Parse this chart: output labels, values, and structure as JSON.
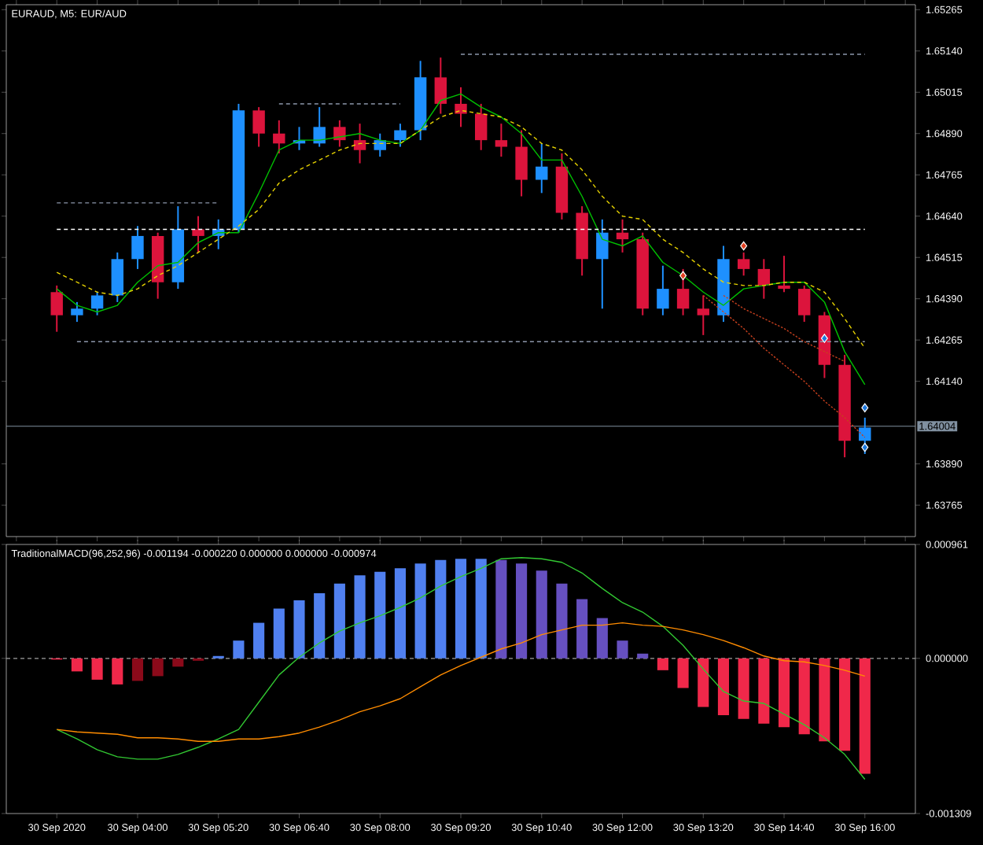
{
  "chart_data": [
    {
      "type": "candlestick",
      "title": "EURAUD, M5: EUR/AUD",
      "tick_labels": "y",
      "categories": [
        null,
        null,
        null,
        null,
        null,
        null,
        null,
        null,
        null,
        null,
        null,
        null,
        null,
        null,
        null,
        null,
        null,
        null,
        null,
        null,
        null,
        null,
        null,
        null,
        null,
        null,
        null,
        null,
        null,
        null,
        null,
        null,
        null,
        null,
        null,
        null,
        null,
        null,
        null,
        null,
        null,
        null,
        null,
        null,
        null
      ],
      "ylim": [
        1.6367,
        1.6528
      ],
      "yticks": [
        {
          "value": 1.65265,
          "label": "1.65265"
        },
        {
          "value": 1.6514,
          "label": "1.65140"
        },
        {
          "value": 1.65015,
          "label": "1.65015"
        },
        {
          "value": 1.6489,
          "label": "1.64890"
        },
        {
          "value": 1.64765,
          "label": "1.64765"
        },
        {
          "value": 1.6464,
          "label": "1.64640"
        },
        {
          "value": 1.64515,
          "label": "1.64515"
        },
        {
          "value": 1.6439,
          "label": "1.64390"
        },
        {
          "value": 1.64265,
          "label": "1.64265"
        },
        {
          "value": 1.6414,
          "label": "1.64140"
        },
        {
          "value": 1.6389,
          "label": "1.63890"
        },
        {
          "value": 1.63765,
          "label": "1.63765"
        }
      ],
      "ohlc": [
        null,
        null,
        [
          1.6441,
          1.6443,
          1.6429,
          1.6434
        ],
        [
          1.6434,
          1.6438,
          1.6432,
          1.6436
        ],
        [
          1.6436,
          1.6441,
          1.6434,
          1.644
        ],
        [
          1.644,
          1.6453,
          1.6438,
          1.6451
        ],
        [
          1.6451,
          1.6461,
          1.6448,
          1.6458
        ],
        [
          1.6458,
          1.6459,
          1.6439,
          1.6444
        ],
        [
          1.6444,
          1.6467,
          1.6442,
          1.646
        ],
        [
          1.646,
          1.6464,
          1.6453,
          1.6458
        ],
        [
          1.6458,
          1.6463,
          1.6454,
          1.646
        ],
        [
          1.646,
          1.6498,
          1.6459,
          1.6496
        ],
        [
          1.6496,
          1.6497,
          1.6485,
          1.6489
        ],
        [
          1.6489,
          1.6493,
          1.6483,
          1.6486
        ],
        [
          1.6486,
          1.6491,
          1.6484,
          1.6487
        ],
        [
          1.6486,
          1.6497,
          1.6485,
          1.6491
        ],
        [
          1.6491,
          1.6493,
          1.6485,
          1.6487
        ],
        [
          1.6487,
          1.6492,
          1.648,
          1.6484
        ],
        [
          1.6484,
          1.6489,
          1.6482,
          1.6487
        ],
        [
          1.6487,
          1.6492,
          1.6485,
          1.649
        ],
        [
          1.649,
          1.6511,
          1.6487,
          1.6506
        ],
        [
          1.6506,
          1.6512,
          1.6495,
          1.6498
        ],
        [
          1.6498,
          1.6503,
          1.6491,
          1.6495
        ],
        [
          1.6495,
          1.6498,
          1.6484,
          1.6487
        ],
        [
          1.6487,
          1.6492,
          1.6482,
          1.6485
        ],
        [
          1.6485,
          1.649,
          1.647,
          1.6475
        ],
        [
          1.6475,
          1.6486,
          1.6471,
          1.6479
        ],
        [
          1.6479,
          1.6483,
          1.6463,
          1.6465
        ],
        [
          1.6465,
          1.6467,
          1.6446,
          1.6451
        ],
        [
          1.6451,
          1.6463,
          1.6436,
          1.6459
        ],
        [
          1.6459,
          1.6463,
          1.6453,
          1.6457
        ],
        [
          1.6457,
          1.6459,
          1.6434,
          1.6436
        ],
        [
          1.6436,
          1.6449,
          1.6434,
          1.6442
        ],
        [
          1.6442,
          1.6448,
          1.6434,
          1.6436
        ],
        [
          1.6436,
          1.644,
          1.6428,
          1.6434
        ],
        [
          1.6434,
          1.6455,
          1.6432,
          1.6451
        ],
        [
          1.6451,
          1.6453,
          1.6446,
          1.6448
        ],
        [
          1.6448,
          1.6451,
          1.6439,
          1.6443
        ],
        [
          1.6443,
          1.6452,
          1.6441,
          1.6442
        ],
        [
          1.6442,
          1.6443,
          1.6432,
          1.6434
        ],
        [
          1.6434,
          1.6435,
          1.6415,
          1.6419
        ],
        [
          1.6419,
          1.6422,
          1.6391,
          1.6396
        ],
        [
          1.6396,
          1.6403,
          1.6392,
          1.64
        ],
        null,
        null
      ],
      "colors": [
        null,
        null,
        "#dc143c",
        "#1e90ff",
        "#1e90ff",
        "#1e90ff",
        "#1e90ff",
        "#dc143c",
        "#1e90ff",
        "#dc143c",
        "#1e90ff",
        "#1e90ff",
        "#dc143c",
        "#dc143c",
        "#1e90ff",
        "#1e90ff",
        "#dc143c",
        "#dc143c",
        "#1e90ff",
        "#1e90ff",
        "#1e90ff",
        "#dc143c",
        "#dc143c",
        "#dc143c",
        "#dc143c",
        "#dc143c",
        "#1e90ff",
        "#dc143c",
        "#dc143c",
        "#1e90ff",
        "#dc143c",
        "#dc143c",
        "#1e90ff",
        "#dc143c",
        "#dc143c",
        "#1e90ff",
        "#dc143c",
        "#dc143c",
        "#dc143c",
        "#dc143c",
        "#dc143c",
        "#dc143c",
        "#1e90ff",
        null,
        null
      ],
      "series": [
        {
          "type": "line",
          "color": "#00c000",
          "values": [
            null,
            null,
            1.6442,
            1.6437,
            1.6435,
            1.6437,
            1.6444,
            1.6449,
            1.645,
            1.6456,
            1.6459,
            1.6459,
            1.6471,
            1.6484,
            1.6487,
            1.6487,
            1.6488,
            1.6489,
            1.6487,
            1.6486,
            1.649,
            1.6499,
            1.6501,
            1.6497,
            1.6494,
            1.6489,
            1.6481,
            1.6481,
            1.647,
            1.6457,
            1.6455,
            1.6458,
            1.645,
            1.6446,
            1.6441,
            1.6437,
            1.6442,
            1.6443,
            1.6444,
            1.6444,
            1.6438,
            1.6423,
            1.6413,
            null,
            null
          ]
        },
        {
          "type": "line",
          "color": "#e6d200",
          "line_style": "dashed",
          "values": [
            null,
            null,
            1.6447,
            1.6444,
            1.6441,
            1.644,
            1.6442,
            1.6446,
            1.6449,
            1.6453,
            1.6457,
            1.6461,
            1.6466,
            1.6474,
            1.6478,
            1.6481,
            1.6484,
            1.6486,
            1.6486,
            1.6486,
            1.649,
            1.6494,
            1.6496,
            1.6495,
            1.6494,
            1.6491,
            1.6486,
            1.6484,
            1.6478,
            1.647,
            1.6464,
            1.6463,
            1.6457,
            1.6453,
            1.6448,
            1.6444,
            1.6443,
            1.6443,
            1.6444,
            1.6444,
            1.6441,
            1.6433,
            1.6424,
            null,
            null
          ]
        },
        {
          "type": "line",
          "color": "#8c96aa",
          "line_style": "dashed",
          "values": [
            null,
            null,
            null,
            null,
            null,
            null,
            null,
            null,
            null,
            null,
            null,
            null,
            null,
            null,
            null,
            null,
            null,
            null,
            null,
            null,
            null,
            null,
            1.6513,
            1.6513,
            1.6513,
            1.6513,
            1.6513,
            1.6513,
            1.6513,
            1.6513,
            1.6513,
            1.6513,
            1.6513,
            1.6513,
            1.6513,
            1.6513,
            1.6513,
            1.6513,
            1.6513,
            1.6513,
            1.6513,
            1.6513,
            1.6513,
            null,
            null
          ]
        },
        {
          "type": "line",
          "color": "#8c96aa",
          "line_style": "dashed",
          "values": [
            null,
            null,
            null,
            null,
            null,
            null,
            null,
            null,
            null,
            null,
            null,
            null,
            null,
            1.6498,
            1.6498,
            1.6498,
            1.6498,
            1.6498,
            1.6498,
            1.6498,
            null,
            null,
            null,
            null,
            null,
            null,
            null,
            null,
            null,
            null,
            null,
            null,
            null,
            null,
            null,
            null,
            null,
            null,
            null,
            null,
            null,
            null,
            null,
            null,
            null
          ]
        },
        {
          "type": "line",
          "color": "#8c96aa",
          "line_style": "dashed",
          "values": [
            null,
            null,
            1.6468,
            1.6468,
            1.6468,
            1.6468,
            1.6468,
            1.6468,
            1.6468,
            1.6468,
            1.6468,
            null,
            null,
            null,
            null,
            null,
            null,
            null,
            null,
            null,
            null,
            null,
            null,
            null,
            null,
            null,
            null,
            null,
            null,
            null,
            null,
            null,
            null,
            null,
            null,
            null,
            null,
            null,
            null,
            null,
            null,
            null,
            null,
            null,
            null
          ]
        },
        {
          "type": "line",
          "color": "#8c96aa",
          "line_style": "dashed",
          "values": [
            null,
            null,
            null,
            1.6426,
            1.6426,
            1.6426,
            1.6426,
            1.6426,
            1.6426,
            1.6426,
            1.6426,
            1.6426,
            1.6426,
            1.6426,
            1.6426,
            1.6426,
            1.6426,
            1.6426,
            1.6426,
            1.6426,
            1.6426,
            1.6426,
            1.6426,
            1.6426,
            1.6426,
            1.6426,
            1.6426,
            1.6426,
            1.6426,
            1.6426,
            1.6426,
            1.6426,
            1.6426,
            1.6426,
            1.6426,
            1.6426,
            1.6426,
            1.6426,
            1.6426,
            1.6426,
            1.6426,
            1.6426,
            1.6426,
            null,
            null
          ]
        },
        {
          "type": "line",
          "color": "#ffffff",
          "line_style": "dashed",
          "values": [
            null,
            null,
            1.646,
            1.646,
            1.646,
            1.646,
            1.646,
            1.646,
            1.646,
            1.646,
            1.646,
            1.646,
            1.646,
            1.646,
            1.646,
            1.646,
            1.646,
            1.646,
            1.646,
            1.646,
            1.646,
            1.646,
            1.646,
            1.646,
            1.646,
            1.646,
            1.646,
            1.646,
            1.646,
            1.646,
            1.646,
            1.646,
            1.646,
            1.646,
            1.646,
            1.646,
            1.646,
            1.646,
            1.646,
            1.646,
            1.646,
            1.646,
            1.646,
            null,
            null
          ]
        },
        {
          "type": "line",
          "color": "#c8401e",
          "line_style": "dotted",
          "values": [
            null,
            null,
            null,
            null,
            null,
            null,
            null,
            null,
            null,
            null,
            null,
            null,
            null,
            null,
            null,
            null,
            null,
            null,
            null,
            null,
            null,
            null,
            null,
            null,
            null,
            null,
            null,
            null,
            null,
            null,
            null,
            null,
            null,
            null,
            1.644,
            1.6435,
            1.643,
            1.6424,
            1.6419,
            1.6414,
            1.6408,
            1.6403,
            1.6397,
            null,
            null
          ]
        },
        {
          "type": "line",
          "color": "#c8401e",
          "line_style": "dotted",
          "values": [
            null,
            null,
            null,
            null,
            null,
            null,
            null,
            null,
            null,
            null,
            null,
            null,
            null,
            null,
            null,
            null,
            null,
            null,
            null,
            null,
            null,
            null,
            null,
            null,
            null,
            null,
            null,
            null,
            null,
            null,
            null,
            null,
            null,
            null,
            null,
            1.644,
            1.6436,
            1.6433,
            1.643,
            1.6426,
            1.6423,
            1.642,
            null,
            null,
            null
          ]
        },
        {
          "type": "scatter",
          "marker": "diamond",
          "color": "#e04020",
          "values": [
            null,
            null,
            null,
            null,
            null,
            null,
            null,
            null,
            null,
            null,
            null,
            null,
            null,
            null,
            null,
            null,
            null,
            null,
            null,
            null,
            null,
            null,
            null,
            null,
            null,
            null,
            null,
            null,
            null,
            null,
            null,
            null,
            null,
            1.6446,
            null,
            null,
            1.6455,
            null,
            null,
            null,
            null,
            null,
            null,
            null,
            null
          ]
        },
        {
          "type": "scatter",
          "marker": "diamond",
          "color": "#1e78dc",
          "values": [
            null,
            null,
            null,
            null,
            null,
            null,
            null,
            null,
            null,
            null,
            null,
            null,
            null,
            null,
            null,
            null,
            null,
            null,
            null,
            null,
            null,
            null,
            null,
            null,
            null,
            null,
            null,
            null,
            null,
            null,
            null,
            null,
            null,
            null,
            null,
            null,
            null,
            null,
            null,
            null,
            1.6427,
            null,
            1.6406,
            null,
            null
          ]
        },
        {
          "type": "scatter",
          "marker": "diamond",
          "color": "#1e78dc",
          "values": [
            null,
            null,
            null,
            null,
            null,
            null,
            null,
            null,
            null,
            null,
            null,
            null,
            null,
            null,
            null,
            null,
            null,
            null,
            null,
            null,
            null,
            null,
            null,
            null,
            null,
            null,
            null,
            null,
            null,
            null,
            null,
            null,
            null,
            null,
            null,
            null,
            null,
            null,
            null,
            null,
            null,
            null,
            1.6394,
            null,
            null
          ]
        }
      ],
      "ref_lines": [
        {
          "axis": "y",
          "value": 1.64004,
          "label": "1.64004",
          "color": "#8090a0",
          "line_style": "solid"
        }
      ]
    },
    {
      "type": "bar",
      "title": "TraditionalMACD(96,252,96) -0.001194 -0.000220 0.000000 0.000000 -0.000974",
      "categories": [
        null,
        null,
        "30 Sep 2020",
        null,
        null,
        null,
        "30 Sep 04:00",
        null,
        null,
        null,
        "30 Sep 05:20",
        null,
        null,
        null,
        "30 Sep 06:40",
        null,
        null,
        null,
        "30 Sep 08:00",
        null,
        null,
        null,
        "30 Sep 09:20",
        null,
        null,
        null,
        "30 Sep 10:40",
        null,
        null,
        null,
        "30 Sep 12:00",
        null,
        null,
        null,
        "30 Sep 13:20",
        null,
        null,
        null,
        "30 Sep 14:40",
        null,
        null,
        null,
        "30 Sep 16:00",
        null,
        null
      ],
      "ylim": [
        -0.001309,
        0.000961
      ],
      "yticks": [
        {
          "value": 0.000961,
          "label": "0.000961"
        },
        {
          "value": 0,
          "label": "0.000000"
        },
        {
          "value": -0.001309,
          "label": "-0.001309"
        }
      ],
      "series": [
        {
          "values": [
            null,
            null,
            -1e-05,
            -0.00011,
            -0.00018,
            -0.00022,
            -0.00019,
            -0.00015,
            -7e-05,
            -2e-05,
            2e-05,
            0.00015,
            0.0003,
            0.00042,
            0.00049,
            0.00055,
            0.00063,
            0.0007,
            0.00073,
            0.00076,
            0.0008,
            0.00083,
            0.00084,
            0.00084,
            0.00083,
            0.0008,
            0.00074,
            0.00063,
            0.0005,
            0.00034,
            0.00015,
            4e-05,
            -0.0001,
            -0.00025,
            -0.00041,
            -0.00048,
            -0.00051,
            -0.00055,
            -0.00058,
            -0.00064,
            -0.0007,
            -0.00078,
            -0.000974,
            null,
            null
          ],
          "colors": [
            null,
            null,
            "#f0284a",
            "#f0284a",
            "#f0284a",
            "#f0284a",
            "#8b0a1a",
            "#8b0a1a",
            "#8b0a1a",
            "#8b0a1a",
            "#5080f0",
            "#5080f0",
            "#5080f0",
            "#5080f0",
            "#5080f0",
            "#5080f0",
            "#5080f0",
            "#5080f0",
            "#5080f0",
            "#5080f0",
            "#5080f0",
            "#5080f0",
            "#5080f0",
            "#5080f0",
            "#6650c0",
            "#6650c0",
            "#6650c0",
            "#6650c0",
            "#6650c0",
            "#6650c0",
            "#6650c0",
            "#6650c0",
            "#f0284a",
            "#f0284a",
            "#f0284a",
            "#f0284a",
            "#f0284a",
            "#f0284a",
            "#f0284a",
            "#f0284a",
            "#f0284a",
            "#f0284a",
            "#f0284a",
            null,
            null
          ]
        },
        {
          "type": "line",
          "color": "#32c832",
          "values": [
            null,
            null,
            -0.0006,
            -0.00068,
            -0.00077,
            -0.00083,
            -0.00085,
            -0.00085,
            -0.00081,
            -0.00075,
            -0.00068,
            -0.0006,
            -0.00037,
            -0.00014,
            1e-05,
            0.00013,
            0.00023,
            0.0003,
            0.00036,
            0.00043,
            0.00051,
            0.00061,
            0.00069,
            0.00076,
            0.00084,
            0.00085,
            0.00084,
            0.00081,
            0.00072,
            0.00059,
            0.00047,
            0.00039,
            0.00027,
            0.00011,
            -9e-05,
            -0.00028,
            -0.00036,
            -0.00038,
            -0.00047,
            -0.00056,
            -0.00067,
            -0.00081,
            -0.00102,
            null,
            null
          ]
        },
        {
          "type": "line",
          "color": "#ff8c00",
          "values": [
            null,
            null,
            -0.0006,
            -0.00062,
            -0.00063,
            -0.00064,
            -0.00067,
            -0.00067,
            -0.00068,
            -0.0007,
            -0.0007,
            -0.00068,
            -0.00068,
            -0.00066,
            -0.00063,
            -0.00058,
            -0.00052,
            -0.00045,
            -0.0004,
            -0.00034,
            -0.00024,
            -0.00014,
            -6e-05,
            1e-05,
            8e-05,
            0.00013,
            0.0002,
            0.00024,
            0.00028,
            0.00028,
            0.0003,
            0.00028,
            0.00027,
            0.00024,
            0.0002,
            0.00015,
            9e-05,
            2e-05,
            -2e-05,
            -3e-05,
            -6e-05,
            -0.0001,
            -0.00015,
            null,
            null
          ]
        }
      ],
      "ref_lines": [
        {
          "axis": "y",
          "value": 0,
          "color": "#a0a0a0",
          "line_style": "dashed"
        }
      ]
    }
  ]
}
